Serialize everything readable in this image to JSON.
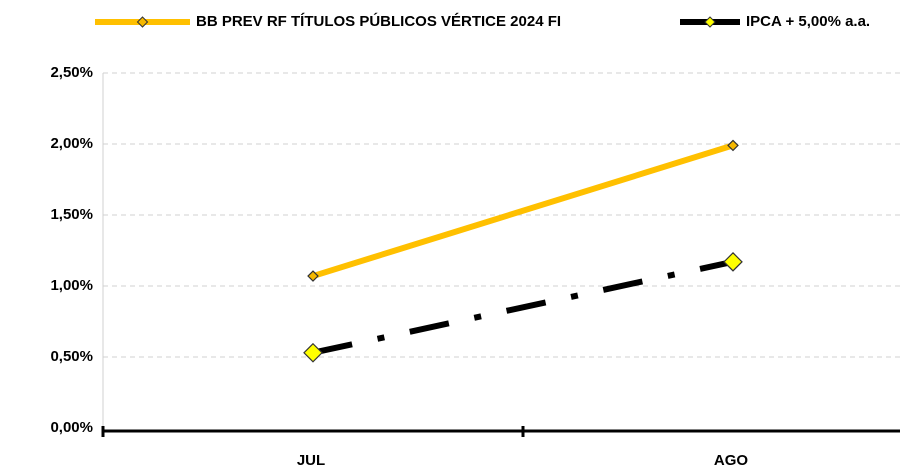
{
  "chart_data": {
    "type": "line",
    "categories": [
      "JUL",
      "AGO"
    ],
    "series": [
      {
        "name": "BB PREV RF TÍTULOS PÚBLICOS VÉRTICE 2024 FI",
        "color": "#ffc000",
        "marker_fill": "#f5b800",
        "values": [
          1.07,
          1.99
        ]
      },
      {
        "name": "IPCA + 5,00% a.a.",
        "color": "#000000",
        "marker_fill": "#ffff00",
        "values": [
          0.53,
          1.17
        ]
      }
    ],
    "ylim": [
      0,
      2.5
    ],
    "yticks": [
      {
        "value": 0,
        "label": "0,00%"
      },
      {
        "value": 0.5,
        "label": "0,50%"
      },
      {
        "value": 1,
        "label": "1,00%"
      },
      {
        "value": 1.5,
        "label": "1,50%"
      },
      {
        "value": 2,
        "label": "2,00%"
      },
      {
        "value": 2.5,
        "label": "2,50%"
      }
    ],
    "grid": true,
    "legend": "top"
  }
}
